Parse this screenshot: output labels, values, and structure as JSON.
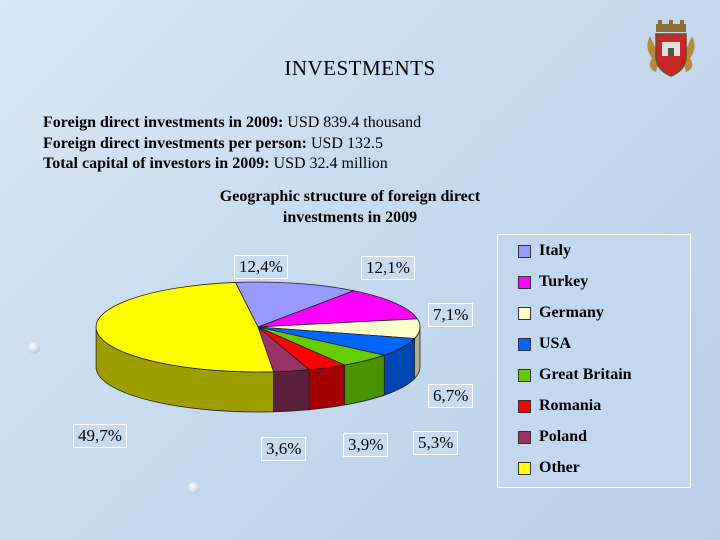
{
  "title": "INVESTMENTS",
  "facts": [
    {
      "label": "Foreign direct investments in 2009:",
      "value": " USD 839.4 thousand"
    },
    {
      "label": "Foreign direct investments per person:",
      "value": " USD 132.5"
    },
    {
      "label": "Total capital of investors in 2009:",
      "value": " USD 32.4 million"
    }
  ],
  "chart_data": {
    "type": "pie",
    "title": "Geographic structure of foreign direct investments in 2009",
    "categories": [
      "Italy",
      "Turkey",
      "Germany",
      "USA",
      "Great Britain",
      "Romania",
      "Poland",
      "Other"
    ],
    "values": [
      12.4,
      12.1,
      7.1,
      6.7,
      5.3,
      3.9,
      3.6,
      49.7
    ],
    "value_labels": [
      "12,4%",
      "12,1%",
      "7,1%",
      "6,7%",
      "5,3%",
      "3,9%",
      "3,6%",
      "49,7%"
    ],
    "colors": [
      "#9999ff",
      "#ff00ff",
      "#ffffcc",
      "#0066ff",
      "#66cc00",
      "#ff0000",
      "#993366",
      "#ffff00"
    ],
    "side_colors": [
      "#5f5fb0",
      "#a300a3",
      "#b3b38a",
      "#0046b3",
      "#4a9100",
      "#a30000",
      "#5c1f3d",
      "#9e9e00"
    ],
    "legend_position": "right"
  },
  "coat_of_arms_icon": "coat-of-arms-icon"
}
